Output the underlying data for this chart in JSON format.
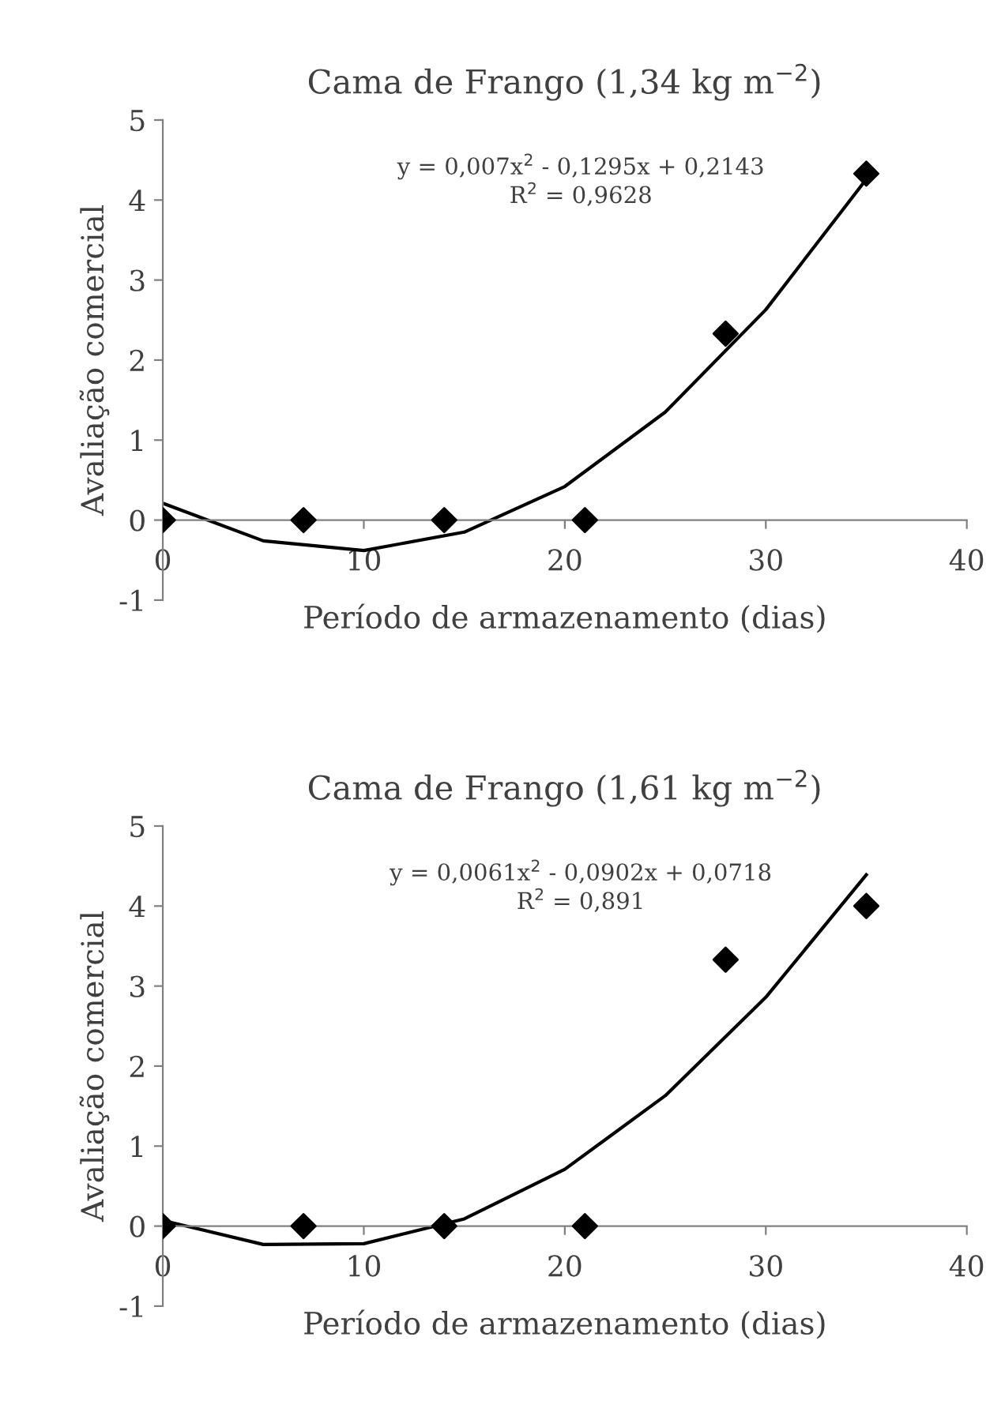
{
  "chart_data": [
    {
      "type": "scatter",
      "title": "Cama de Frango (1,34 kg m$^{−2}$)",
      "xlabel": "Período de armazenamento (dias)",
      "ylabel": "Avaliação comercial",
      "xlim": [
        0,
        40
      ],
      "xticks": [
        0,
        10,
        20,
        30,
        40
      ],
      "ylim": [
        -1,
        5
      ],
      "yticks": [
        -1,
        0,
        1,
        2,
        3,
        4,
        5
      ],
      "grid": false,
      "legend": false,
      "annotations": [
        "y = 0,007x$^{2}$ - 0,1295x + 0,2143\nR$^{2}$ = 0,9628"
      ],
      "series": [
        {
          "color": "#000000",
          "marker": "diamond",
          "x": [
            0,
            7,
            14,
            21,
            28,
            35
          ],
          "values": [
            0,
            0,
            0,
            0,
            2.33,
            4.33
          ]
        },
        {
          "type": "line",
          "color": "#000000",
          "marker": "none",
          "line_style": "solid",
          "x": [
            0,
            5,
            10,
            15,
            20,
            25,
            30,
            35
          ],
          "values": [
            0.21,
            -0.26,
            -0.38,
            -0.15,
            0.42,
            1.35,
            2.63,
            4.26
          ]
        }
      ]
    },
    {
      "type": "scatter",
      "title": "Cama de Frango (1,61 kg m$^{−2}$)",
      "xlabel": "Período de armazenamento (dias)",
      "ylabel": "Avaliação comercial",
      "xlim": [
        0,
        40
      ],
      "xticks": [
        0,
        10,
        20,
        30,
        40
      ],
      "ylim": [
        -1,
        5
      ],
      "yticks": [
        -1,
        0,
        1,
        2,
        3,
        4,
        5
      ],
      "grid": false,
      "legend": false,
      "annotations": [
        "y = 0,0061x$^{2}$ - 0,0902x + 0,0718\nR$^{2}$ = 0,891"
      ],
      "series": [
        {
          "color": "#000000",
          "marker": "diamond",
          "x": [
            0,
            7,
            14,
            21,
            28,
            35
          ],
          "values": [
            0,
            0,
            0,
            0,
            3.33,
            4.0
          ]
        },
        {
          "type": "line",
          "color": "#000000",
          "marker": "none",
          "line_style": "solid",
          "x": [
            0,
            5,
            10,
            15,
            20,
            25,
            30,
            35
          ],
          "values": [
            0.07,
            -0.23,
            -0.22,
            0.09,
            0.71,
            1.63,
            2.86,
            4.39
          ]
        }
      ]
    }
  ]
}
